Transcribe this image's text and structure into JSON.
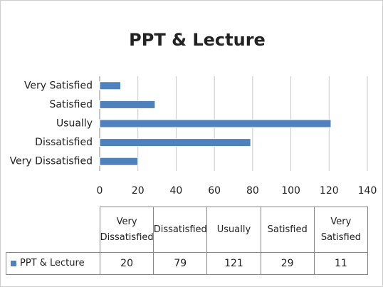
{
  "chart_data": {
    "type": "bar",
    "orientation": "horizontal",
    "title": "PPT & Lecture",
    "categories": [
      "Very Dissatisfied",
      "Dissatisfied",
      "Usually",
      "Satisfied",
      "Very Satisfied"
    ],
    "series": [
      {
        "name": "PPT & Lecture",
        "color": "#4f81bd",
        "values": [
          20,
          79,
          121,
          29,
          11
        ]
      }
    ],
    "xlim": [
      0,
      140
    ],
    "xticks": [
      0,
      20,
      40,
      60,
      80,
      100,
      120,
      140
    ],
    "grid": true,
    "data_table": true
  }
}
